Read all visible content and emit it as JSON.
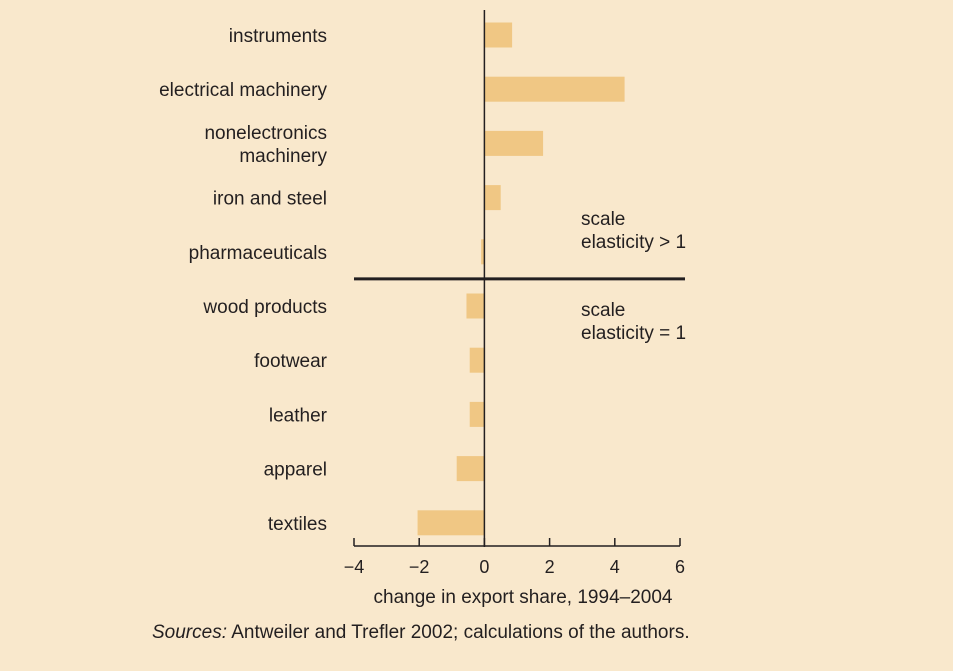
{
  "chart_data": {
    "type": "bar",
    "orientation": "horizontal",
    "categories": [
      [
        "instruments"
      ],
      [
        "electrical machinery"
      ],
      [
        "nonelectronics",
        "machinery"
      ],
      [
        "iron and steel"
      ],
      [
        "pharmaceuticals"
      ],
      [
        "wood products"
      ],
      [
        "footwear"
      ],
      [
        "leather"
      ],
      [
        "apparel"
      ],
      [
        "textiles"
      ]
    ],
    "values": [
      0.85,
      4.3,
      1.8,
      0.5,
      -0.1,
      -0.55,
      -0.45,
      -0.45,
      -0.85,
      -2.05
    ],
    "xlabel": "change in export share, 1994–2004",
    "xlim": [
      -4,
      6
    ],
    "xticks": [
      -4,
      -2,
      0,
      2,
      4,
      6
    ],
    "xtick_labels": [
      "−4",
      "−2",
      "0",
      "2",
      "4",
      "6"
    ],
    "grid": false,
    "divider_after_index": 4,
    "annotations": [
      [
        "scale",
        "elasticity > 1"
      ],
      [
        "scale",
        "elasticity = 1"
      ]
    ],
    "bar_color": "#f0c784",
    "axis_color": "#231f20"
  },
  "source": {
    "prefix": "Sources:",
    "text": "Antweiler and Trefler 2002; calculations of the authors."
  }
}
